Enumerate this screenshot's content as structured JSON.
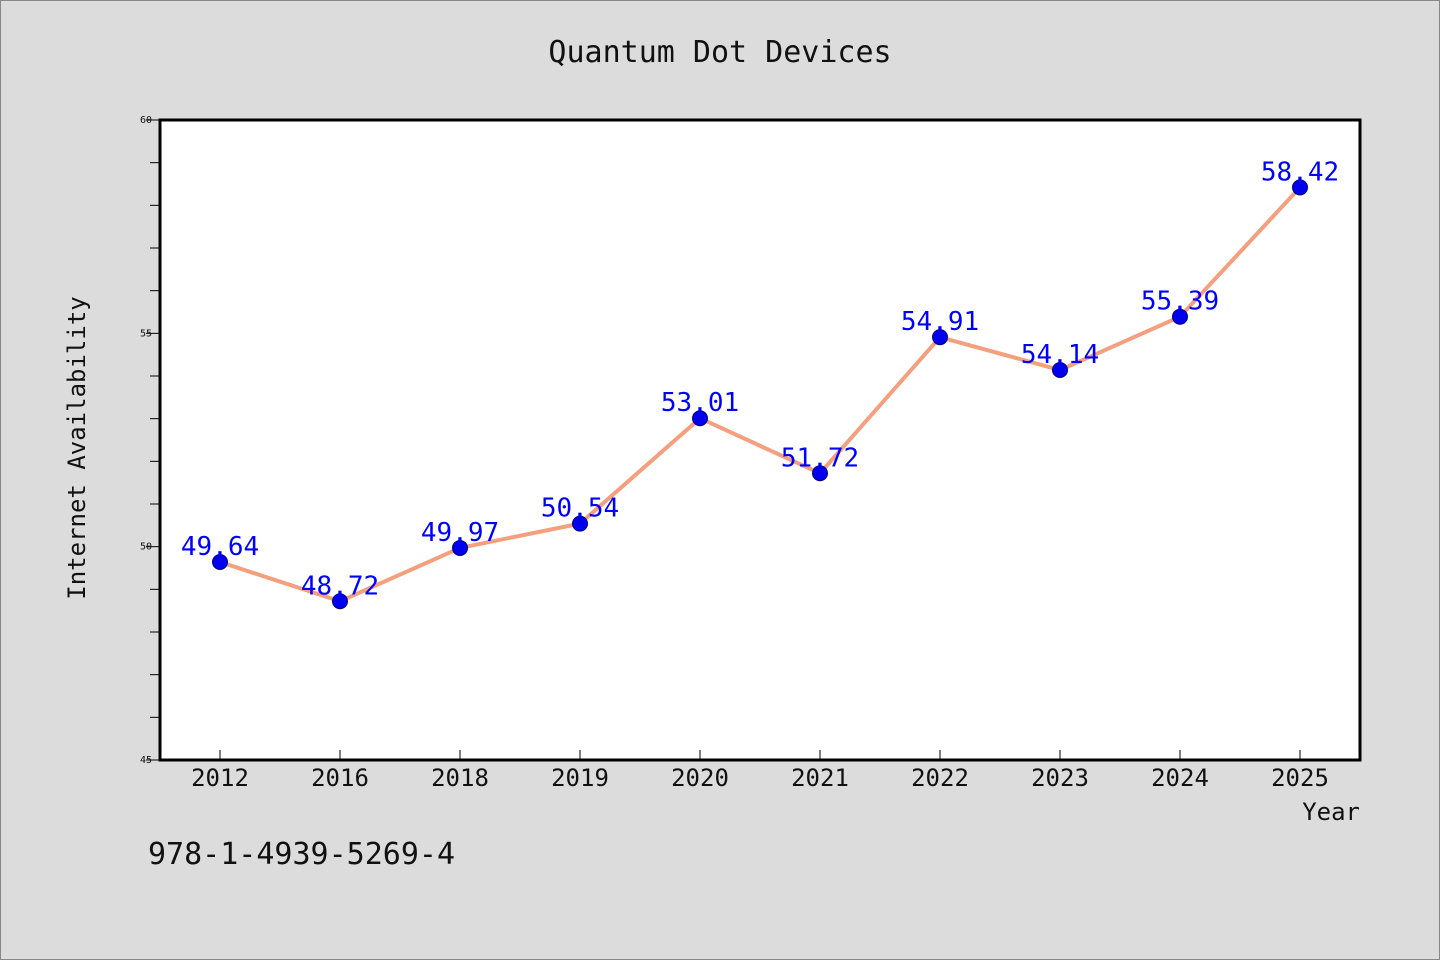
{
  "chart_data": {
    "type": "line",
    "title": "Quantum Dot Devices",
    "xlabel": "Year",
    "ylabel": "Internet Availability",
    "categories": [
      "2012",
      "2016",
      "2018",
      "2019",
      "2020",
      "2021",
      "2022",
      "2023",
      "2024",
      "2025"
    ],
    "series": [
      {
        "values": [
          49.64,
          48.72,
          49.97,
          50.54,
          53.01,
          51.72,
          54.91,
          54.14,
          55.39,
          58.42
        ],
        "labels": [
          "49.64",
          "48.72",
          "49.97",
          "50.54",
          "53.01",
          "51.72",
          "54.91",
          "54.14",
          "55.39",
          "58.42"
        ]
      }
    ],
    "ylim": [
      45,
      60
    ],
    "y_major_ticks": [
      45,
      50,
      55,
      60
    ],
    "y_tick_labels": [
      "45",
      "50",
      "55",
      "60"
    ],
    "y_minor_step": 1,
    "grid": false,
    "legend": "none",
    "annotation": "978-1-4939-5269-4",
    "colors": {
      "figure_background": "#dcdcdc",
      "plot_background": "#ffffff",
      "line": "#f4a07e",
      "marker": "#0000ee",
      "marker_edge": "#000080",
      "data_label": "#0000ff",
      "text": "#111111",
      "axis": "#000000"
    }
  }
}
